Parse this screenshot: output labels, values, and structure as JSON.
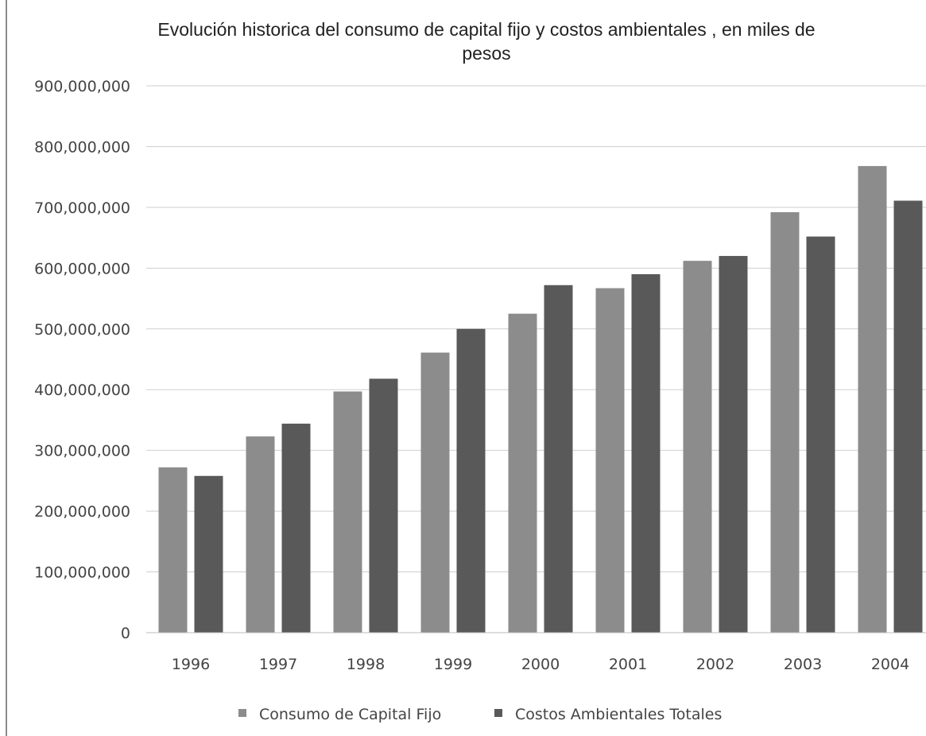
{
  "chart_data": {
    "type": "bar",
    "title": "Evolución historica del consumo de capital fijo y costos ambientales , en miles de pesos",
    "title_lines": [
      "Evolución historica del consumo de capital fijo y costos ambientales , en miles de",
      "pesos"
    ],
    "xlabel": "",
    "ylabel": "",
    "categories": [
      "1996",
      "1997",
      "1998",
      "1999",
      "2000",
      "2001",
      "2002",
      "2003",
      "2004"
    ],
    "series": [
      {
        "name": "Consumo de Capital Fijo",
        "color": "#8c8c8c",
        "values": [
          272000000,
          323000000,
          397000000,
          461000000,
          525000000,
          567000000,
          612000000,
          692000000,
          768000000
        ]
      },
      {
        "name": "Costos Ambientales Totales",
        "color": "#595959",
        "values": [
          258000000,
          344000000,
          418000000,
          500000000,
          572000000,
          590000000,
          620000000,
          652000000,
          711000000
        ]
      }
    ],
    "ylim": [
      0,
      900000000
    ],
    "yticks": [
      0,
      100000000,
      200000000,
      300000000,
      400000000,
      500000000,
      600000000,
      700000000,
      800000000,
      900000000
    ],
    "ytick_labels": [
      "0",
      "100,000,000",
      "200,000,000",
      "300,000,000",
      "400,000,000",
      "500,000,000",
      "600,000,000",
      "700,000,000",
      "800,000,000",
      "900,000,000"
    ],
    "grid": true,
    "legend_position": "bottom"
  }
}
